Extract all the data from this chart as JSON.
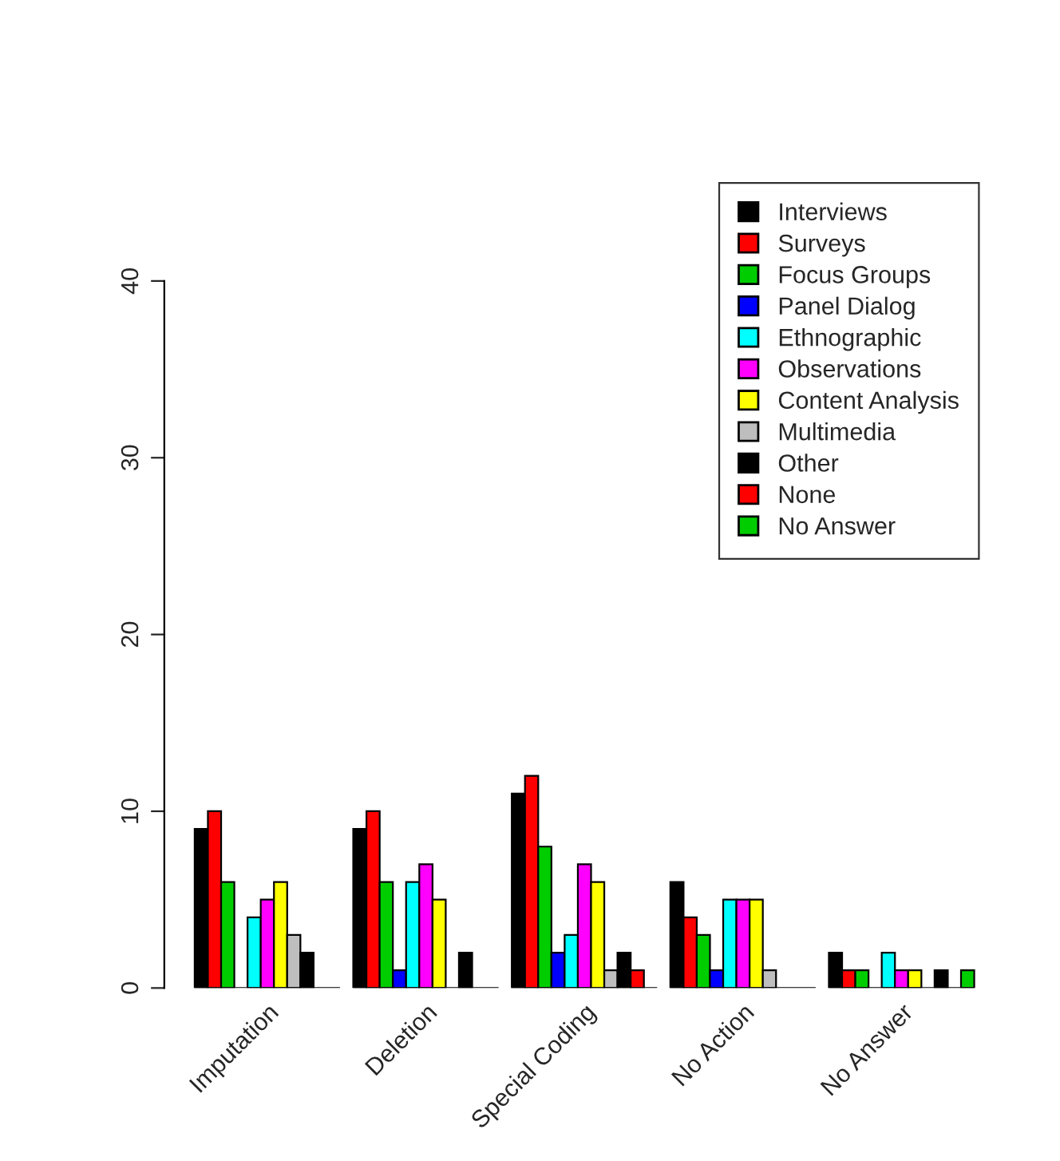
{
  "chart_data": {
    "type": "bar",
    "categories": [
      "Imputation",
      "Deletion",
      "Special Coding",
      "No Action",
      "No Answer"
    ],
    "series": [
      {
        "name": "Interviews",
        "color": "#000000",
        "values": [
          9,
          9,
          11,
          6,
          2
        ]
      },
      {
        "name": "Surveys",
        "color": "#ff0000",
        "values": [
          10,
          10,
          12,
          4,
          1
        ]
      },
      {
        "name": "Focus Groups",
        "color": "#00cd00",
        "values": [
          6,
          6,
          8,
          3,
          1
        ]
      },
      {
        "name": "Panel Dialog",
        "color": "#0000ff",
        "values": [
          0,
          1,
          2,
          1,
          0
        ]
      },
      {
        "name": "Ethnographic",
        "color": "#00ffff",
        "values": [
          4,
          6,
          3,
          5,
          2
        ]
      },
      {
        "name": "Observations",
        "color": "#ff00ff",
        "values": [
          5,
          7,
          7,
          5,
          1
        ]
      },
      {
        "name": "Content Analysis",
        "color": "#ffff00",
        "values": [
          6,
          5,
          6,
          5,
          1
        ]
      },
      {
        "name": "Multimedia",
        "color": "#bebebe",
        "values": [
          3,
          0,
          1,
          1,
          0
        ]
      },
      {
        "name": "Other",
        "color": "#000000",
        "values": [
          2,
          2,
          2,
          0,
          1
        ]
      },
      {
        "name": "None",
        "color": "#ff0000",
        "values": [
          0,
          0,
          1,
          0,
          0
        ]
      },
      {
        "name": "No Answer",
        "color": "#00cd00",
        "values": [
          0,
          0,
          0,
          0,
          1
        ]
      }
    ],
    "ylim": [
      0,
      40
    ],
    "yticks": [
      0,
      10,
      20,
      30,
      40
    ],
    "grid": false,
    "legend": "top right"
  }
}
